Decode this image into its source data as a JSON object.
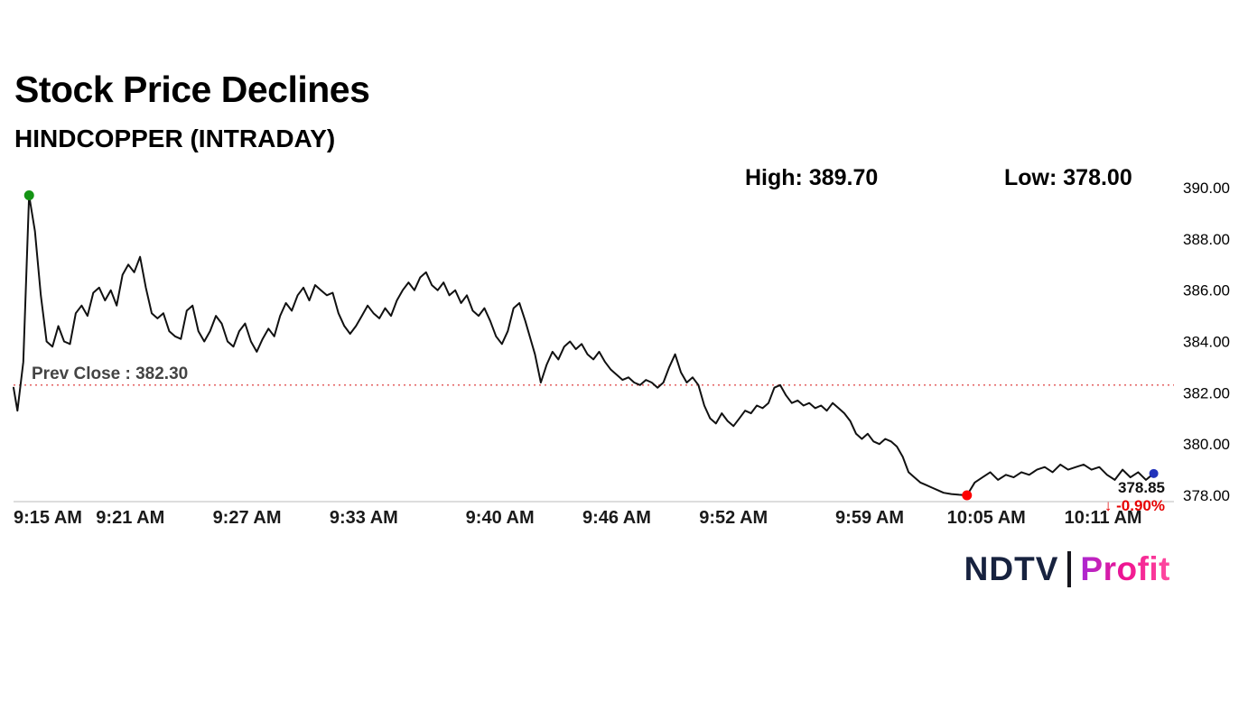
{
  "header": {
    "title": "Stock Price Declines",
    "subtitle": "HINDCOPPER (INTRADAY)",
    "high_label": "High: 389.70",
    "low_label": "Low: 378.00"
  },
  "chart_data": {
    "type": "line",
    "symbol": "HINDCOPPER",
    "session": "INTRADAY",
    "title": "HINDCOPPER (INTRADAY)",
    "high": 389.7,
    "low": 378.0,
    "prev_close": {
      "value": 382.3,
      "label": "Prev Close : 382.30"
    },
    "last": {
      "price": 378.85,
      "price_label": "378.85",
      "change_label": "↓ -0.90%",
      "change_pct": -0.9
    },
    "line_color": "#111111",
    "prev_close_color": "#e05252",
    "axis_color": "#bbbbbb",
    "x_axis": {
      "unit": "minutes since 9:15 AM",
      "range": [
        0,
        59.5
      ],
      "ticks": [
        {
          "m": 0,
          "label": "9:15 AM"
        },
        {
          "m": 6,
          "label": "9:21 AM"
        },
        {
          "m": 12,
          "label": "9:27 AM"
        },
        {
          "m": 18,
          "label": "9:33 AM"
        },
        {
          "m": 25,
          "label": "9:40 AM"
        },
        {
          "m": 31,
          "label": "9:46 AM"
        },
        {
          "m": 37,
          "label": "9:52 AM"
        },
        {
          "m": 44,
          "label": "9:59 AM"
        },
        {
          "m": 50,
          "label": "10:05 AM"
        },
        {
          "m": 56,
          "label": "10:11 AM"
        }
      ]
    },
    "y_axis": {
      "range": [
        378,
        390
      ],
      "grid": false,
      "ticks": [
        {
          "v": 390,
          "label": "390.00"
        },
        {
          "v": 388,
          "label": "388.00"
        },
        {
          "v": 386,
          "label": "386.00"
        },
        {
          "v": 384,
          "label": "384.00"
        },
        {
          "v": 382,
          "label": "382.00"
        },
        {
          "v": 380,
          "label": "380.00"
        },
        {
          "v": 378,
          "label": "378.00"
        }
      ]
    },
    "markers": [
      {
        "name": "session-high-marker",
        "m": 0.8,
        "price": 389.7,
        "color": "#149414",
        "r": 5.5
      },
      {
        "name": "session-low-marker",
        "m": 49.0,
        "price": 378.0,
        "color": "#fe0000",
        "r": 5.5
      },
      {
        "name": "last-price-marker",
        "m": 58.6,
        "price": 378.85,
        "color": "#2233bb",
        "r": 5
      }
    ],
    "series": [
      {
        "name": "HINDCOPPER price",
        "points": [
          [
            0,
            382.2
          ],
          [
            0.2,
            381.3
          ],
          [
            0.5,
            383.2
          ],
          [
            0.8,
            389.7
          ],
          [
            1.1,
            388.3
          ],
          [
            1.4,
            385.8
          ],
          [
            1.7,
            384.0
          ],
          [
            2.0,
            383.8
          ],
          [
            2.3,
            384.6
          ],
          [
            2.6,
            384.0
          ],
          [
            2.9,
            383.9
          ],
          [
            3.2,
            385.1
          ],
          [
            3.5,
            385.4
          ],
          [
            3.8,
            385.0
          ],
          [
            4.1,
            385.9
          ],
          [
            4.4,
            386.1
          ],
          [
            4.7,
            385.6
          ],
          [
            5.0,
            386.0
          ],
          [
            5.3,
            385.4
          ],
          [
            5.6,
            386.6
          ],
          [
            5.9,
            387.0
          ],
          [
            6.2,
            386.7
          ],
          [
            6.5,
            387.3
          ],
          [
            6.8,
            386.1
          ],
          [
            7.1,
            385.1
          ],
          [
            7.4,
            384.9
          ],
          [
            7.7,
            385.1
          ],
          [
            8.0,
            384.4
          ],
          [
            8.3,
            384.2
          ],
          [
            8.6,
            384.1
          ],
          [
            8.9,
            385.2
          ],
          [
            9.2,
            385.4
          ],
          [
            9.5,
            384.4
          ],
          [
            9.8,
            384.0
          ],
          [
            10.1,
            384.4
          ],
          [
            10.4,
            385.0
          ],
          [
            10.7,
            384.7
          ],
          [
            11.0,
            384.0
          ],
          [
            11.3,
            383.8
          ],
          [
            11.6,
            384.4
          ],
          [
            11.9,
            384.7
          ],
          [
            12.2,
            384.0
          ],
          [
            12.5,
            383.6
          ],
          [
            12.8,
            384.1
          ],
          [
            13.1,
            384.5
          ],
          [
            13.4,
            384.2
          ],
          [
            13.7,
            385.0
          ],
          [
            14.0,
            385.5
          ],
          [
            14.3,
            385.2
          ],
          [
            14.6,
            385.8
          ],
          [
            14.9,
            386.1
          ],
          [
            15.2,
            385.6
          ],
          [
            15.5,
            386.2
          ],
          [
            15.8,
            386.0
          ],
          [
            16.1,
            385.8
          ],
          [
            16.4,
            385.9
          ],
          [
            16.7,
            385.1
          ],
          [
            17.0,
            384.6
          ],
          [
            17.3,
            384.3
          ],
          [
            17.6,
            384.6
          ],
          [
            17.9,
            385.0
          ],
          [
            18.2,
            385.4
          ],
          [
            18.5,
            385.1
          ],
          [
            18.8,
            384.9
          ],
          [
            19.1,
            385.3
          ],
          [
            19.4,
            385.0
          ],
          [
            19.7,
            385.6
          ],
          [
            20.0,
            386.0
          ],
          [
            20.3,
            386.3
          ],
          [
            20.6,
            386.0
          ],
          [
            20.9,
            386.5
          ],
          [
            21.2,
            386.7
          ],
          [
            21.5,
            386.2
          ],
          [
            21.8,
            386.0
          ],
          [
            22.1,
            386.3
          ],
          [
            22.4,
            385.8
          ],
          [
            22.7,
            386.0
          ],
          [
            23.0,
            385.5
          ],
          [
            23.3,
            385.8
          ],
          [
            23.6,
            385.2
          ],
          [
            23.9,
            385.0
          ],
          [
            24.2,
            385.3
          ],
          [
            24.5,
            384.8
          ],
          [
            24.8,
            384.2
          ],
          [
            25.1,
            383.9
          ],
          [
            25.4,
            384.4
          ],
          [
            25.7,
            385.3
          ],
          [
            26.0,
            385.5
          ],
          [
            26.3,
            384.8
          ],
          [
            26.8,
            383.5
          ],
          [
            27.1,
            382.4
          ],
          [
            27.4,
            383.1
          ],
          [
            27.7,
            383.6
          ],
          [
            28.0,
            383.3
          ],
          [
            28.3,
            383.8
          ],
          [
            28.6,
            384.0
          ],
          [
            28.9,
            383.7
          ],
          [
            29.2,
            383.9
          ],
          [
            29.5,
            383.5
          ],
          [
            29.8,
            383.3
          ],
          [
            30.1,
            383.6
          ],
          [
            30.4,
            383.2
          ],
          [
            30.7,
            382.9
          ],
          [
            31.0,
            382.7
          ],
          [
            31.3,
            382.5
          ],
          [
            31.6,
            382.6
          ],
          [
            31.9,
            382.4
          ],
          [
            32.2,
            382.3
          ],
          [
            32.5,
            382.5
          ],
          [
            32.8,
            382.4
          ],
          [
            33.1,
            382.2
          ],
          [
            33.4,
            382.4
          ],
          [
            33.7,
            383.0
          ],
          [
            34.0,
            383.5
          ],
          [
            34.3,
            382.8
          ],
          [
            34.6,
            382.4
          ],
          [
            34.9,
            382.6
          ],
          [
            35.2,
            382.3
          ],
          [
            35.5,
            381.5
          ],
          [
            35.8,
            381.0
          ],
          [
            36.1,
            380.8
          ],
          [
            36.4,
            381.2
          ],
          [
            36.7,
            380.9
          ],
          [
            37.0,
            380.7
          ],
          [
            37.3,
            381.0
          ],
          [
            37.6,
            381.3
          ],
          [
            37.9,
            381.2
          ],
          [
            38.2,
            381.5
          ],
          [
            38.5,
            381.4
          ],
          [
            38.8,
            381.6
          ],
          [
            39.1,
            382.2
          ],
          [
            39.4,
            382.3
          ],
          [
            39.7,
            381.9
          ],
          [
            40.0,
            381.6
          ],
          [
            40.3,
            381.7
          ],
          [
            40.6,
            381.5
          ],
          [
            40.9,
            381.6
          ],
          [
            41.2,
            381.4
          ],
          [
            41.5,
            381.5
          ],
          [
            41.8,
            381.3
          ],
          [
            42.1,
            381.6
          ],
          [
            42.4,
            381.4
          ],
          [
            42.7,
            381.2
          ],
          [
            43.0,
            380.9
          ],
          [
            43.3,
            380.4
          ],
          [
            43.6,
            380.2
          ],
          [
            43.9,
            380.4
          ],
          [
            44.2,
            380.1
          ],
          [
            44.5,
            380.0
          ],
          [
            44.8,
            380.2
          ],
          [
            45.1,
            380.1
          ],
          [
            45.4,
            379.9
          ],
          [
            45.7,
            379.5
          ],
          [
            46.0,
            378.9
          ],
          [
            46.3,
            378.7
          ],
          [
            46.6,
            378.5
          ],
          [
            46.9,
            378.4
          ],
          [
            47.2,
            378.3
          ],
          [
            47.5,
            378.2
          ],
          [
            47.8,
            378.1
          ],
          [
            48.2,
            378.05
          ],
          [
            48.6,
            378.02
          ],
          [
            49.0,
            378.0
          ],
          [
            49.4,
            378.5
          ],
          [
            49.8,
            378.7
          ],
          [
            50.2,
            378.9
          ],
          [
            50.6,
            378.6
          ],
          [
            51.0,
            378.8
          ],
          [
            51.4,
            378.7
          ],
          [
            51.8,
            378.9
          ],
          [
            52.2,
            378.8
          ],
          [
            52.6,
            379.0
          ],
          [
            53.0,
            379.1
          ],
          [
            53.4,
            378.9
          ],
          [
            53.8,
            379.2
          ],
          [
            54.2,
            379.0
          ],
          [
            54.6,
            379.1
          ],
          [
            55.0,
            379.2
          ],
          [
            55.4,
            379.0
          ],
          [
            55.8,
            379.1
          ],
          [
            56.2,
            378.8
          ],
          [
            56.6,
            378.6
          ],
          [
            57.0,
            379.0
          ],
          [
            57.4,
            378.7
          ],
          [
            57.8,
            378.9
          ],
          [
            58.2,
            378.6
          ],
          [
            58.6,
            378.85
          ]
        ]
      }
    ]
  },
  "footer": {
    "ndtv": "NDTV",
    "profit": "Profit"
  }
}
